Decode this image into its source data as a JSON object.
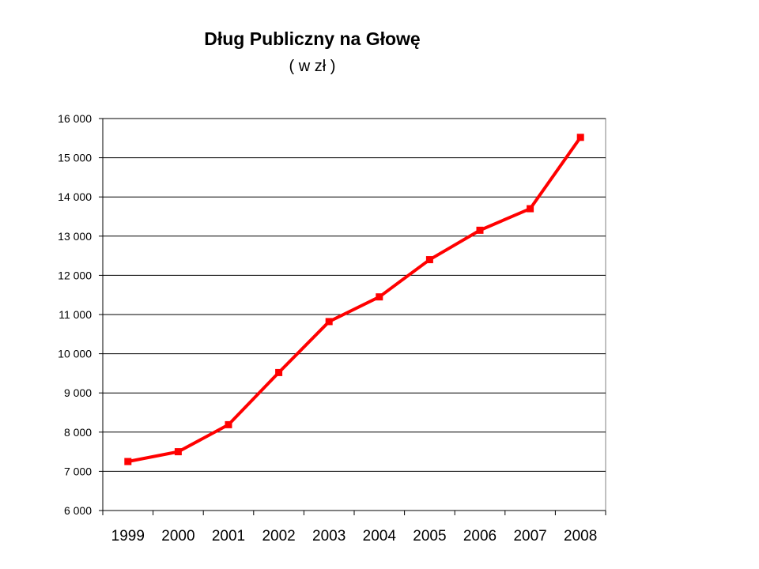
{
  "chart_data": {
    "type": "line",
    "title": "Dług Publiczny na Głowę",
    "subtitle": "( w zł )",
    "xlabel": "",
    "ylabel": "",
    "categories": [
      "1999",
      "2000",
      "2001",
      "2002",
      "2003",
      "2004",
      "2005",
      "2006",
      "2007",
      "2008"
    ],
    "series": [
      {
        "color": "#ff0000",
        "values": [
          7250,
          7500,
          8190,
          9520,
          10820,
          11450,
          12400,
          13150,
          13700,
          15520
        ]
      }
    ],
    "ylim": [
      6000,
      16000
    ],
    "y_tick_step": 1000,
    "y_tick_labels": [
      "6 000",
      "7 000",
      "8 000",
      "9 000",
      "10 000",
      "11 000",
      "12 000",
      "13 000",
      "14 000",
      "15 000",
      "16 000"
    ],
    "grid": true,
    "legend": "none",
    "marker": "square"
  }
}
